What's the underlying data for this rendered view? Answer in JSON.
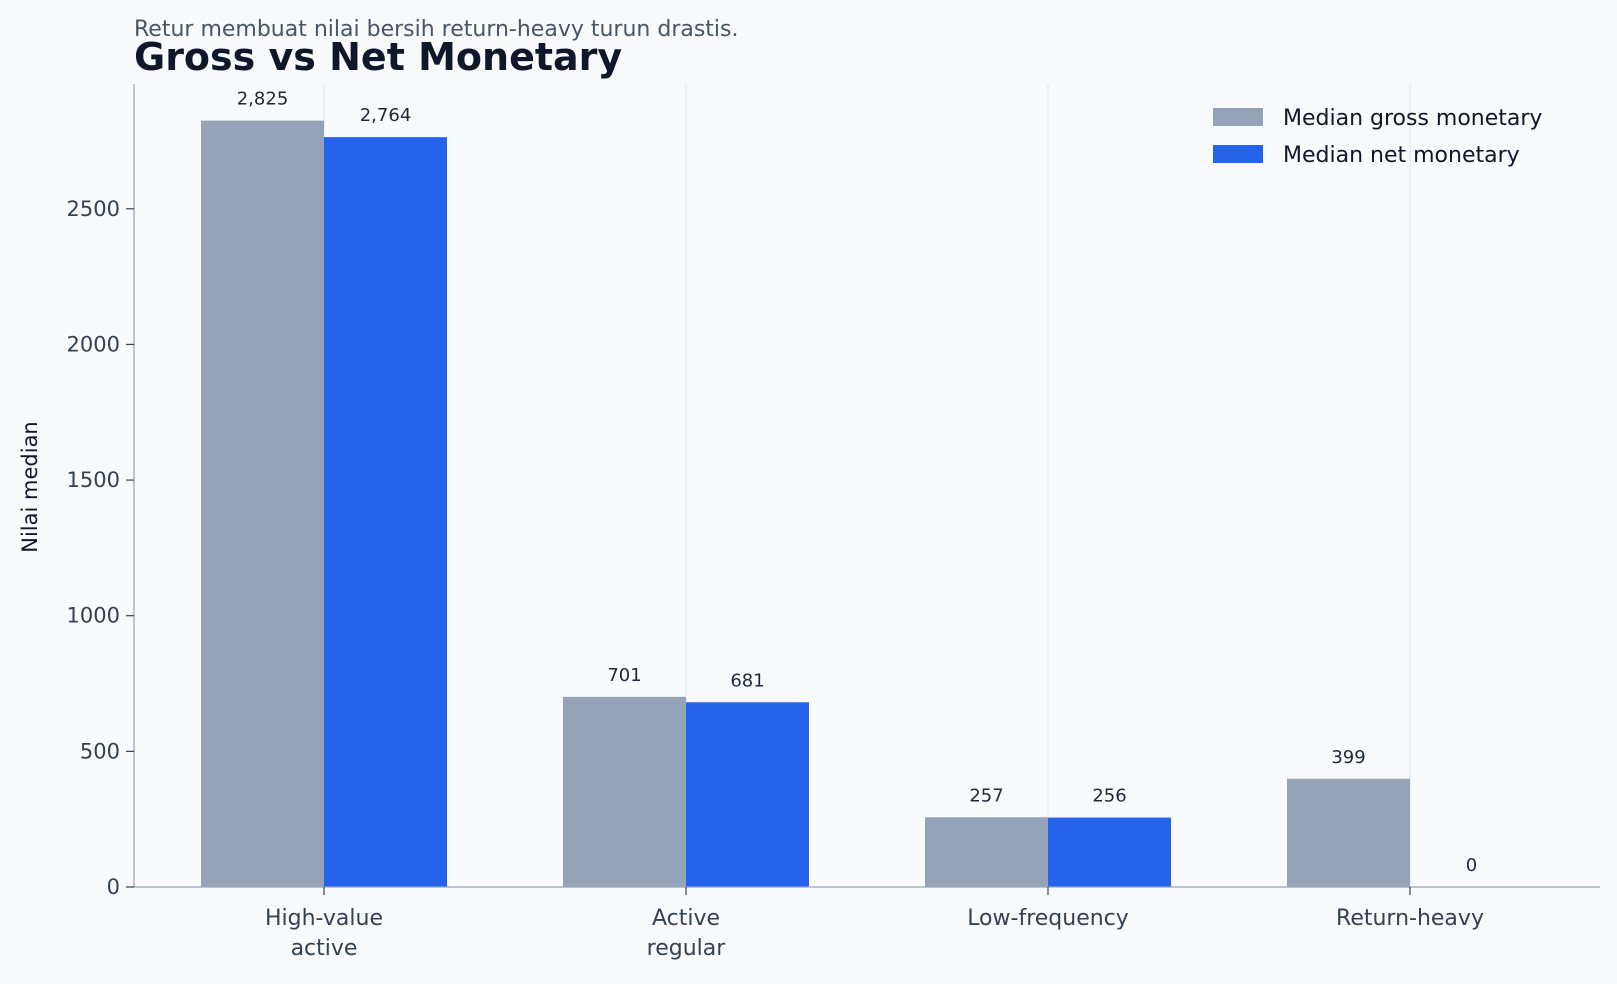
{
  "chart_data": {
    "type": "bar",
    "title": "Gross vs Net Monetary",
    "subtitle": "Retur membuat nilai bersih return-heavy turun drastis.",
    "xlabel": "",
    "ylabel": "Nilai median",
    "categories": [
      [
        "High-value",
        "active"
      ],
      [
        "Active",
        "regular"
      ],
      [
        "Low-frequency"
      ],
      [
        "Return-heavy"
      ]
    ],
    "series": [
      {
        "name": "Median gross monetary",
        "color": "#94a3b8",
        "values": [
          2825,
          701,
          257,
          399
        ],
        "labels": [
          "2,825",
          "701",
          "257",
          "399"
        ]
      },
      {
        "name": "Median net monetary",
        "color": "#2563eb",
        "values": [
          2764,
          681,
          256,
          0
        ],
        "labels": [
          "2,764",
          "681",
          "256",
          "0"
        ]
      }
    ],
    "ylim": [
      0,
      2960
    ],
    "yticks": [
      0,
      500,
      1000,
      1500,
      2000,
      2500
    ],
    "grid": "vertical at categories",
    "legend_position": "top-right"
  }
}
